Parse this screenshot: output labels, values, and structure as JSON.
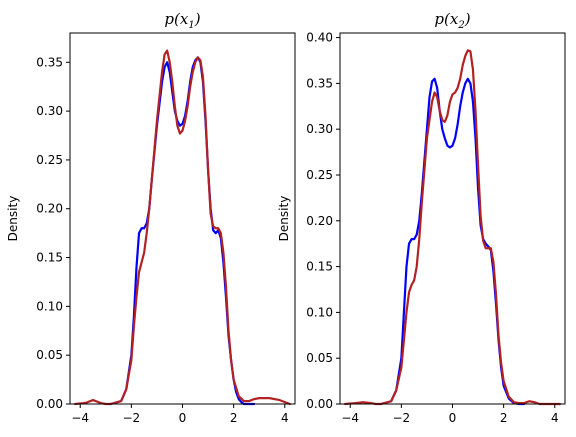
{
  "chart_data": [
    {
      "type": "line",
      "title": {
        "base": "p(x",
        "sub": "1",
        "close": ")"
      },
      "xlabel": "",
      "ylabel": "Density",
      "xlim": [
        -4.4,
        4.4
      ],
      "ylim": [
        0,
        0.38
      ],
      "xticks": [
        -4,
        -2,
        0,
        2,
        4
      ],
      "yticks": [
        0.0,
        0.05,
        0.1,
        0.15,
        0.2,
        0.25,
        0.3,
        0.35
      ],
      "grid": false,
      "series": [
        {
          "color": "#0000ff",
          "x": [
            -2.8,
            -2.4,
            -2.2,
            -2.0,
            -1.9,
            -1.8,
            -1.7,
            -1.6,
            -1.5,
            -1.4,
            -1.3,
            -1.2,
            -1.0,
            -0.8,
            -0.7,
            -0.6,
            -0.5,
            -0.4,
            -0.3,
            -0.2,
            -0.1,
            0.0,
            0.1,
            0.2,
            0.3,
            0.4,
            0.5,
            0.6,
            0.7,
            0.8,
            0.9,
            1.0,
            1.1,
            1.2,
            1.3,
            1.4,
            1.5,
            1.6,
            1.7,
            1.8,
            1.9,
            2.0,
            2.1,
            2.2,
            2.3,
            2.4,
            2.6,
            2.8
          ],
          "y": [
            0.0,
            0.003,
            0.015,
            0.05,
            0.09,
            0.14,
            0.175,
            0.18,
            0.18,
            0.185,
            0.2,
            0.23,
            0.285,
            0.33,
            0.345,
            0.35,
            0.34,
            0.32,
            0.3,
            0.29,
            0.285,
            0.287,
            0.295,
            0.31,
            0.33,
            0.345,
            0.352,
            0.355,
            0.35,
            0.33,
            0.29,
            0.24,
            0.2,
            0.178,
            0.175,
            0.178,
            0.17,
            0.145,
            0.11,
            0.07,
            0.045,
            0.025,
            0.012,
            0.005,
            0.002,
            0.0,
            0.0,
            0.0
          ]
        },
        {
          "color": "#b22222",
          "x": [
            -4.2,
            -3.8,
            -3.5,
            -3.2,
            -3.0,
            -2.8,
            -2.4,
            -2.2,
            -2.0,
            -1.9,
            -1.8,
            -1.7,
            -1.6,
            -1.5,
            -1.4,
            -1.3,
            -1.2,
            -1.0,
            -0.8,
            -0.7,
            -0.6,
            -0.5,
            -0.4,
            -0.3,
            -0.2,
            -0.1,
            0.0,
            0.1,
            0.2,
            0.3,
            0.4,
            0.5,
            0.6,
            0.7,
            0.8,
            0.9,
            1.0,
            1.1,
            1.2,
            1.3,
            1.4,
            1.5,
            1.6,
            1.7,
            1.8,
            1.9,
            2.0,
            2.2,
            2.4,
            2.6,
            2.8,
            3.0,
            3.4,
            3.8,
            4.2
          ],
          "y": [
            0.0,
            0.001,
            0.004,
            0.001,
            0.0,
            0.0,
            0.003,
            0.015,
            0.045,
            0.08,
            0.11,
            0.135,
            0.145,
            0.155,
            0.175,
            0.2,
            0.23,
            0.29,
            0.34,
            0.358,
            0.362,
            0.35,
            0.33,
            0.305,
            0.285,
            0.277,
            0.28,
            0.29,
            0.305,
            0.325,
            0.34,
            0.35,
            0.355,
            0.352,
            0.335,
            0.295,
            0.24,
            0.195,
            0.182,
            0.18,
            0.18,
            0.175,
            0.155,
            0.12,
            0.075,
            0.045,
            0.025,
            0.008,
            0.003,
            0.003,
            0.005,
            0.006,
            0.006,
            0.004,
            0.0
          ]
        }
      ]
    },
    {
      "type": "line",
      "title": {
        "base": "p(x",
        "sub": "2",
        "close": ")"
      },
      "xlabel": "",
      "ylabel": "Density",
      "xlim": [
        -4.4,
        4.4
      ],
      "ylim": [
        0,
        0.405
      ],
      "xticks": [
        -4,
        -2,
        0,
        2,
        4
      ],
      "yticks": [
        0.0,
        0.05,
        0.1,
        0.15,
        0.2,
        0.25,
        0.3,
        0.35,
        0.4
      ],
      "grid": false,
      "series": [
        {
          "color": "#0000ff",
          "x": [
            -2.8,
            -2.4,
            -2.2,
            -2.0,
            -1.9,
            -1.8,
            -1.7,
            -1.6,
            -1.5,
            -1.4,
            -1.3,
            -1.2,
            -1.0,
            -0.9,
            -0.8,
            -0.7,
            -0.6,
            -0.5,
            -0.4,
            -0.3,
            -0.2,
            -0.1,
            0.0,
            0.1,
            0.2,
            0.3,
            0.4,
            0.5,
            0.6,
            0.7,
            0.8,
            0.9,
            1.0,
            1.1,
            1.2,
            1.3,
            1.4,
            1.5,
            1.6,
            1.7,
            1.8,
            1.9,
            2.0,
            2.2,
            2.4,
            2.6,
            2.8
          ],
          "y": [
            0.0,
            0.003,
            0.015,
            0.05,
            0.1,
            0.15,
            0.175,
            0.18,
            0.18,
            0.185,
            0.2,
            0.23,
            0.3,
            0.335,
            0.352,
            0.355,
            0.345,
            0.32,
            0.3,
            0.29,
            0.282,
            0.28,
            0.282,
            0.29,
            0.305,
            0.325,
            0.34,
            0.35,
            0.355,
            0.35,
            0.33,
            0.29,
            0.235,
            0.195,
            0.18,
            0.175,
            0.172,
            0.168,
            0.145,
            0.11,
            0.07,
            0.04,
            0.02,
            0.006,
            0.001,
            0.0,
            0.0
          ]
        },
        {
          "color": "#b22222",
          "x": [
            -4.2,
            -3.8,
            -3.5,
            -3.2,
            -3.0,
            -2.8,
            -2.4,
            -2.2,
            -2.0,
            -1.9,
            -1.8,
            -1.7,
            -1.6,
            -1.5,
            -1.4,
            -1.3,
            -1.2,
            -1.0,
            -0.8,
            -0.7,
            -0.6,
            -0.5,
            -0.4,
            -0.3,
            -0.2,
            -0.1,
            0.0,
            0.1,
            0.2,
            0.3,
            0.4,
            0.5,
            0.6,
            0.7,
            0.8,
            0.9,
            1.0,
            1.1,
            1.2,
            1.3,
            1.4,
            1.5,
            1.6,
            1.7,
            1.8,
            1.9,
            2.0,
            2.2,
            2.4,
            2.6,
            2.8,
            3.0,
            3.2,
            3.4,
            3.8,
            4.2
          ],
          "y": [
            0.0,
            0.001,
            0.002,
            0.001,
            0.0,
            0.0,
            0.003,
            0.015,
            0.04,
            0.07,
            0.1,
            0.122,
            0.13,
            0.135,
            0.15,
            0.18,
            0.22,
            0.29,
            0.33,
            0.34,
            0.335,
            0.32,
            0.31,
            0.308,
            0.315,
            0.33,
            0.338,
            0.34,
            0.345,
            0.355,
            0.37,
            0.38,
            0.386,
            0.385,
            0.365,
            0.32,
            0.26,
            0.205,
            0.178,
            0.17,
            0.17,
            0.17,
            0.155,
            0.12,
            0.075,
            0.045,
            0.025,
            0.008,
            0.002,
            0.001,
            0.001,
            0.003,
            0.002,
            0.0,
            0.0,
            0.0
          ]
        }
      ]
    }
  ]
}
